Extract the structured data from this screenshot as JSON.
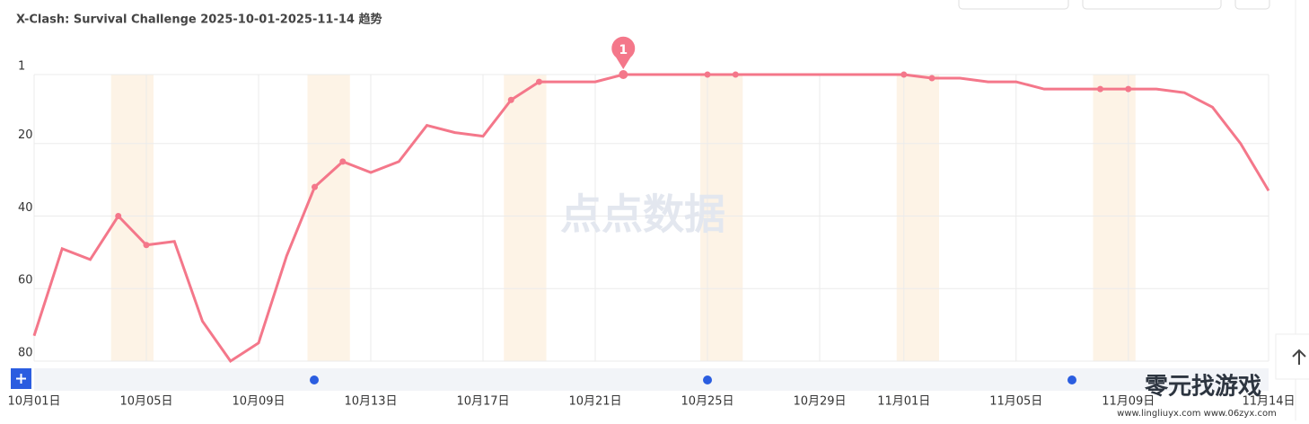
{
  "chart_data": {
    "type": "line",
    "title": "X-Clash: Survival Challenge 2025-10-01-2025-11-14 趋势",
    "categories": [
      "10月01日",
      null,
      null,
      null,
      "10月05日",
      null,
      null,
      null,
      "10月09日",
      null,
      null,
      null,
      "10月13日",
      null,
      null,
      null,
      "10月17日",
      null,
      null,
      null,
      "10月21日",
      null,
      null,
      null,
      "10月25日",
      null,
      null,
      null,
      "10月29日",
      null,
      null,
      "11月01日",
      null,
      null,
      null,
      "11月05日",
      null,
      null,
      null,
      "11月09日",
      null,
      null,
      null,
      null,
      "11月14日"
    ],
    "series": [
      {
        "color": "#f4778a",
        "values": [
          73,
          49,
          52,
          40,
          48,
          47,
          69,
          80,
          75,
          51,
          32,
          25,
          28,
          25,
          15,
          17,
          18,
          8,
          3,
          3,
          3,
          1,
          1,
          1,
          1,
          1,
          1,
          1,
          1,
          1,
          1,
          1,
          2,
          2,
          3,
          3,
          5,
          5,
          5,
          5,
          5,
          6,
          10,
          20,
          33
        ]
      }
    ],
    "peak_index": 21,
    "weekend_bands": [
      [
        3,
        4
      ],
      [
        10,
        11
      ],
      [
        17,
        18
      ],
      [
        24,
        25
      ],
      [
        31,
        32
      ],
      [
        38,
        39
      ]
    ],
    "ylim": [
      80,
      1
    ],
    "yticks": [
      1,
      20,
      40,
      60,
      80
    ],
    "grid": true
  },
  "watermark": "点点数据",
  "corner_logo": {
    "name": "零元找游戏",
    "urls": "www.lingliuyx.com  www.06zyx.com"
  }
}
